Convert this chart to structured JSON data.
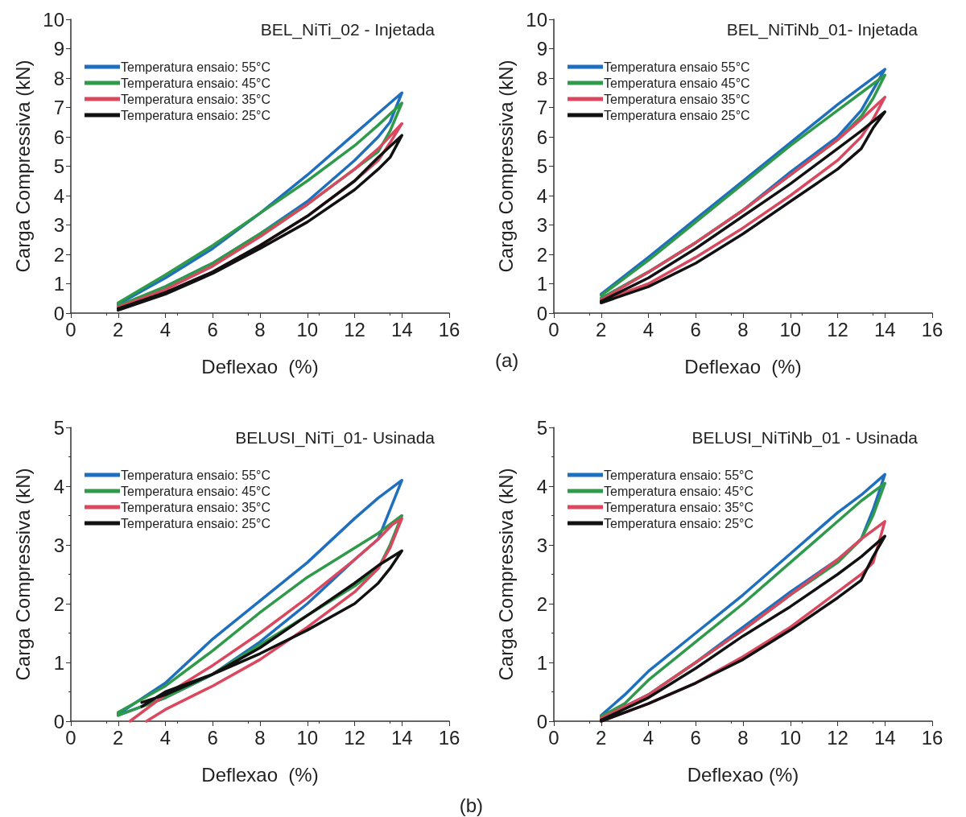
{
  "chart_data": [
    {
      "type": "line",
      "title": "BEL_NiTi_02 - Injetada",
      "xlabel": "Deflexao  (%)",
      "ylabel": "Carga Compressiva (kN)",
      "xlim": [
        0,
        16
      ],
      "xticks": [
        0,
        2,
        4,
        6,
        8,
        10,
        12,
        14,
        16
      ],
      "ylim": [
        0,
        10
      ],
      "yticks": [
        0,
        1,
        2,
        3,
        4,
        5,
        6,
        7,
        8,
        9,
        10
      ],
      "grid": false,
      "legend": "top left",
      "marker": "none",
      "line_style": "solid",
      "series": [
        {
          "name": "Temperatura ensaio: 55°C",
          "color": "#1f6fbf",
          "x": [
            2,
            4,
            6,
            8,
            10,
            12,
            13,
            14,
            13.5,
            13,
            12,
            10,
            8,
            6,
            4,
            2
          ],
          "values": [
            0.3,
            1.2,
            2.2,
            3.4,
            4.7,
            6.1,
            6.8,
            7.5,
            6.5,
            6.0,
            5.2,
            3.8,
            2.7,
            1.7,
            0.9,
            0.2
          ]
        },
        {
          "name": "Temperatura ensaio: 45°C",
          "color": "#2e9a4a",
          "x": [
            2,
            4,
            6,
            8,
            10,
            12,
            13,
            14,
            13.5,
            13,
            12,
            10,
            8,
            6,
            4,
            2
          ],
          "values": [
            0.35,
            1.3,
            2.3,
            3.4,
            4.5,
            5.7,
            6.4,
            7.15,
            6.2,
            5.5,
            4.9,
            3.7,
            2.7,
            1.7,
            0.9,
            0.25
          ]
        },
        {
          "name": "Temperatura ensaio: 35°C",
          "color": "#d9485f",
          "x": [
            2,
            4,
            6,
            8,
            10,
            12,
            13,
            14,
            13.5,
            13,
            12,
            10,
            8,
            6,
            4,
            2
          ],
          "values": [
            0.2,
            0.8,
            1.6,
            2.6,
            3.7,
            4.9,
            5.6,
            6.45,
            5.8,
            5.2,
            4.5,
            3.3,
            2.3,
            1.4,
            0.7,
            0.15
          ]
        },
        {
          "name": "Temperatura ensaio: 25°C",
          "color": "#111111",
          "x": [
            2,
            4,
            6,
            8,
            10,
            12,
            13,
            14,
            13.5,
            13,
            12,
            10,
            8,
            6,
            4,
            2
          ],
          "values": [
            0.15,
            0.7,
            1.4,
            2.3,
            3.3,
            4.5,
            5.3,
            6.05,
            5.3,
            4.9,
            4.2,
            3.1,
            2.2,
            1.35,
            0.65,
            0.1
          ]
        }
      ]
    },
    {
      "type": "line",
      "title": "BEL_NiTiNb_01- Injetada",
      "xlabel": "Deflexao  (%)",
      "ylabel": "Carga Compressiva (kN)",
      "xlim": [
        0,
        16
      ],
      "xticks": [
        0,
        2,
        4,
        6,
        8,
        10,
        12,
        14,
        16
      ],
      "ylim": [
        0,
        10
      ],
      "yticks": [
        0,
        1,
        2,
        3,
        4,
        5,
        6,
        7,
        8,
        9,
        10
      ],
      "grid": false,
      "legend": "top left",
      "marker": "none",
      "line_style": "solid",
      "annotations": [
        "(a)"
      ],
      "series": [
        {
          "name": "Temperatura ensaio 55°C",
          "color": "#1f6fbf",
          "x": [
            2,
            4,
            6,
            8,
            10,
            12,
            13,
            14,
            13.5,
            13,
            12,
            11,
            10,
            8,
            6,
            4,
            2
          ],
          "values": [
            0.65,
            1.9,
            3.2,
            4.5,
            5.8,
            7.1,
            7.7,
            8.3,
            7.6,
            6.9,
            6.0,
            5.4,
            4.8,
            3.5,
            2.4,
            1.4,
            0.5
          ]
        },
        {
          "name": "Temperatura ensaio 45°C",
          "color": "#2e9a4a",
          "x": [
            2,
            4,
            6,
            8,
            10,
            12,
            13,
            14,
            13.5,
            13,
            12,
            10,
            8,
            6,
            4,
            2
          ],
          "values": [
            0.6,
            1.8,
            3.1,
            4.4,
            5.7,
            6.9,
            7.5,
            8.1,
            7.3,
            6.7,
            5.9,
            4.7,
            3.5,
            2.4,
            1.4,
            0.5
          ]
        },
        {
          "name": "Temperatura ensaio 35°C",
          "color": "#d9485f",
          "x": [
            2,
            4,
            6,
            8,
            10,
            12,
            13,
            14,
            13.5,
            13,
            12,
            10,
            8,
            6,
            4,
            2
          ],
          "values": [
            0.45,
            1.4,
            2.4,
            3.5,
            4.7,
            5.9,
            6.6,
            7.35,
            6.6,
            6.0,
            5.2,
            4.0,
            2.9,
            1.9,
            1.0,
            0.4
          ]
        },
        {
          "name": "Temperatura ensaio 25°C",
          "color": "#111111",
          "x": [
            2,
            4,
            6,
            8,
            10,
            12,
            13,
            14,
            13.5,
            13,
            12,
            10,
            8,
            6,
            4,
            2
          ],
          "values": [
            0.4,
            1.2,
            2.2,
            3.3,
            4.4,
            5.6,
            6.2,
            6.85,
            6.3,
            5.6,
            4.9,
            3.8,
            2.7,
            1.7,
            0.9,
            0.35
          ]
        }
      ]
    },
    {
      "type": "line",
      "title": "BELUSI_NiTi_01- Usinada",
      "xlabel": "Deflexao  (%)",
      "ylabel": "Carga Compressiva (kN)",
      "xlim": [
        0,
        16
      ],
      "xticks": [
        0,
        2,
        4,
        6,
        8,
        10,
        12,
        14,
        16
      ],
      "ylim": [
        0,
        5
      ],
      "yticks": [
        0,
        1,
        2,
        3,
        4,
        5
      ],
      "grid": false,
      "legend": "top left",
      "marker": "none",
      "line_style": "solid",
      "annotations": [
        "(b)"
      ],
      "series": [
        {
          "name": "Temperatura ensaio: 55°C",
          "color": "#1f6fbf",
          "x": [
            2,
            4,
            6,
            8,
            10,
            12,
            13,
            14,
            13.5,
            13,
            12,
            10,
            8,
            6,
            4,
            2
          ],
          "values": [
            0.12,
            0.65,
            1.4,
            2.05,
            2.7,
            3.45,
            3.8,
            4.1,
            3.6,
            3.1,
            2.75,
            2.0,
            1.35,
            0.8,
            0.4,
            0.1
          ]
        },
        {
          "name": "Temperatura ensaio: 45°C",
          "color": "#2e9a4a",
          "x": [
            2,
            4,
            6,
            8,
            10,
            12,
            13,
            14,
            13.5,
            13,
            12,
            10,
            8,
            6,
            4,
            2
          ],
          "values": [
            0.15,
            0.6,
            1.2,
            1.85,
            2.45,
            2.95,
            3.2,
            3.5,
            3.0,
            2.6,
            2.3,
            1.8,
            1.3,
            0.8,
            0.4,
            0.1
          ]
        },
        {
          "name": "Temperatura ensaio: 35°C",
          "color": "#d9485f",
          "x": [
            2.5,
            4,
            6,
            8,
            10,
            12,
            13,
            13.6,
            14,
            13.5,
            13,
            12,
            10,
            8,
            6,
            4,
            3.2
          ],
          "values": [
            0.0,
            0.45,
            0.95,
            1.5,
            2.1,
            2.75,
            3.1,
            3.35,
            3.45,
            2.95,
            2.6,
            2.2,
            1.6,
            1.05,
            0.6,
            0.2,
            0.0
          ]
        },
        {
          "name": "Temperatura ensaio: 25°C",
          "color": "#111111",
          "x": [
            3,
            4,
            6,
            8,
            10,
            12,
            13,
            14,
            13.5,
            13,
            12,
            10,
            8,
            6,
            4,
            3
          ],
          "values": [
            0.32,
            0.45,
            0.8,
            1.25,
            1.8,
            2.35,
            2.65,
            2.9,
            2.6,
            2.35,
            2.0,
            1.55,
            1.15,
            0.8,
            0.5,
            0.25
          ]
        }
      ]
    },
    {
      "type": "line",
      "title": "BELUSI_NiTiNb_01 - Usinada",
      "xlabel": "Deflexao (%)",
      "ylabel": "Carga Compressiva (kN)",
      "xlim": [
        0,
        16
      ],
      "xticks": [
        0,
        2,
        4,
        6,
        8,
        10,
        12,
        14,
        16
      ],
      "ylim": [
        0,
        5
      ],
      "yticks": [
        0,
        1,
        2,
        3,
        4,
        5
      ],
      "grid": false,
      "legend": "top left",
      "marker": "none",
      "line_style": "solid",
      "series": [
        {
          "name": "Temperatura ensaio: 55°C",
          "color": "#1f6fbf",
          "x": [
            2,
            3,
            4,
            6,
            8,
            10,
            12,
            13,
            14,
            13.5,
            13,
            12,
            10,
            8,
            6,
            4,
            2
          ],
          "values": [
            0.1,
            0.45,
            0.85,
            1.5,
            2.15,
            2.85,
            3.55,
            3.85,
            4.2,
            3.6,
            3.1,
            2.75,
            2.2,
            1.6,
            1.0,
            0.45,
            0.05
          ]
        },
        {
          "name": "Temperatura ensaio: 45°C",
          "color": "#2e9a4a",
          "x": [
            2,
            3,
            4,
            6,
            8,
            10,
            12,
            13,
            14,
            13.5,
            13,
            12,
            10,
            8,
            6,
            4,
            2
          ],
          "values": [
            0.08,
            0.3,
            0.7,
            1.35,
            2.0,
            2.7,
            3.4,
            3.75,
            4.05,
            3.5,
            3.1,
            2.7,
            2.15,
            1.55,
            1.0,
            0.45,
            0.02
          ]
        },
        {
          "name": "Temperatura ensaio: 35°C",
          "color": "#d9485f",
          "x": [
            2,
            4,
            6,
            8,
            10,
            12,
            13,
            14,
            13.5,
            13,
            12,
            10,
            8,
            6,
            4,
            2
          ],
          "values": [
            0.05,
            0.45,
            1.0,
            1.55,
            2.15,
            2.75,
            3.1,
            3.4,
            2.7,
            2.5,
            2.2,
            1.6,
            1.1,
            0.65,
            0.3,
            0.0
          ]
        },
        {
          "name": "Temperatura ensaio: 25°C",
          "color": "#111111",
          "x": [
            2,
            4,
            6,
            8,
            10,
            12,
            13,
            14,
            13.5,
            13,
            12,
            10,
            8,
            6,
            4,
            2
          ],
          "values": [
            0.02,
            0.4,
            0.9,
            1.45,
            1.95,
            2.5,
            2.8,
            3.15,
            2.8,
            2.4,
            2.1,
            1.55,
            1.05,
            0.65,
            0.3,
            0.0
          ]
        }
      ]
    }
  ]
}
